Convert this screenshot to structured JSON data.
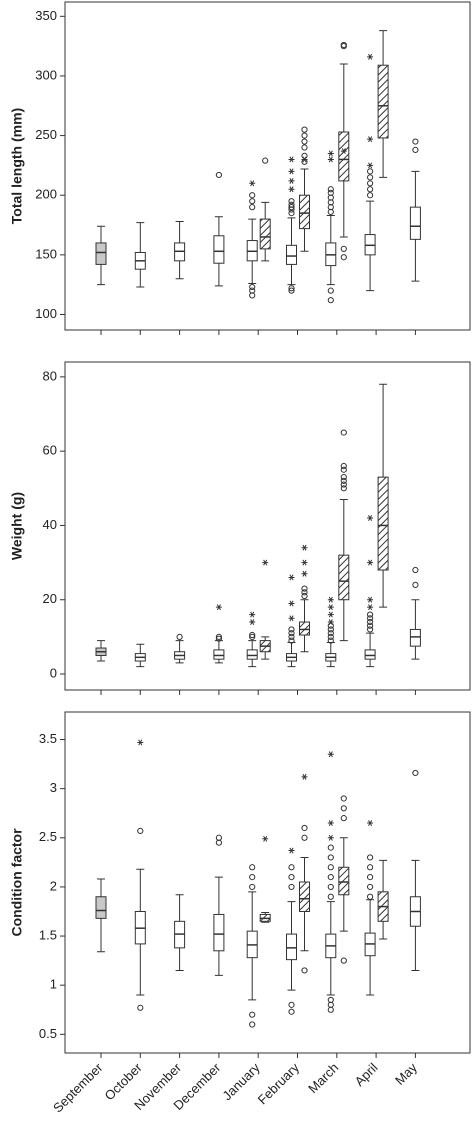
{
  "chart_data": [
    {
      "type": "box",
      "y_label": "Total length (mm)",
      "ylim": [
        87,
        362
      ],
      "yticks": [
        100,
        150,
        200,
        250,
        300,
        350
      ],
      "series": [
        {
          "colors": [
            "#c8c8c8",
            "#ffffff",
            "#ffffff",
            "#ffffff",
            "#ffffff",
            "#ffffff",
            "#ffffff",
            "#ffffff",
            "#ffffff"
          ],
          "boxes": [
            {
              "whislo": 125,
              "q1": 142,
              "med": 152,
              "q3": 160,
              "whishi": 174
            },
            {
              "whislo": 123,
              "q1": 138,
              "med": 145,
              "q3": 152,
              "whishi": 177
            },
            {
              "whislo": 130,
              "q1": 145,
              "med": 153,
              "q3": 160,
              "whishi": 178
            },
            {
              "whislo": 124,
              "q1": 143,
              "med": 153,
              "q3": 166,
              "whishi": 182,
              "outliers": [
                217
              ]
            },
            {
              "whislo": 126,
              "q1": 145,
              "med": 153,
              "q3": 162,
              "whishi": 180,
              "outliers": [
                190,
                195,
                200,
                123,
                120,
                116
              ],
              "extremes": [
                210
              ]
            },
            {
              "whislo": 125,
              "q1": 142,
              "med": 149,
              "q3": 158,
              "whishi": 181,
              "outliers": [
                185,
                188,
                190,
                192,
                195,
                122,
                120
              ],
              "extremes": [
                205,
                212,
                220,
                230
              ]
            },
            {
              "whislo": 125,
              "q1": 141,
              "med": 150,
              "q3": 160,
              "whishi": 183,
              "outliers": [
                186,
                190,
                194,
                198,
                202,
                205,
                120,
                112
              ],
              "extremes": [
                230,
                235
              ]
            },
            {
              "whislo": 120,
              "q1": 150,
              "med": 158,
              "q3": 167,
              "whishi": 195,
              "outliers": [
                200,
                205,
                210,
                215,
                220
              ],
              "extremes": [
                225,
                247,
                316
              ]
            },
            {
              "whislo": 128,
              "q1": 163,
              "med": 174,
              "q3": 190,
              "whishi": 220,
              "outliers": [
                238,
                245
              ]
            }
          ]
        },
        {
          "color": "#ffffff",
          "pattern": "hatch",
          "boxes": [
            null,
            null,
            null,
            null,
            {
              "whislo": 145,
              "q1": 155,
              "med": 165,
              "q3": 180,
              "whishi": 194,
              "outliers": [
                229
              ]
            },
            {
              "whislo": 153,
              "q1": 172,
              "med": 185,
              "q3": 200,
              "whishi": 222,
              "outliers": [
                228,
                233,
                240,
                245,
                250,
                255
              ],
              "extremes": [
                230
              ]
            },
            {
              "whislo": 165,
              "q1": 212,
              "med": 230,
              "q3": 253,
              "whishi": 310,
              "outliers": [
                325,
                326,
                155,
                148
              ],
              "extremes": [
                237
              ]
            },
            {
              "whislo": 215,
              "q1": 248,
              "med": 275,
              "q3": 309,
              "whishi": 338
            },
            null
          ]
        }
      ]
    },
    {
      "type": "box",
      "y_label": "Weight (g)",
      "ylim": [
        -4.3,
        84
      ],
      "yticks": [
        0,
        20,
        40,
        60,
        80
      ],
      "series": [
        {
          "colors": [
            "#c8c8c8",
            "#ffffff",
            "#ffffff",
            "#ffffff",
            "#ffffff",
            "#ffffff",
            "#ffffff",
            "#ffffff",
            "#ffffff"
          ],
          "boxes": [
            {
              "whislo": 3.5,
              "q1": 5,
              "med": 6,
              "q3": 7,
              "whishi": 9
            },
            {
              "whislo": 2,
              "q1": 3.5,
              "med": 4.5,
              "q3": 5.5,
              "whishi": 8
            },
            {
              "whislo": 3,
              "q1": 4,
              "med": 5,
              "q3": 6,
              "whishi": 9,
              "outliers": [
                10
              ]
            },
            {
              "whislo": 3,
              "q1": 4,
              "med": 5,
              "q3": 6.5,
              "whishi": 9,
              "outliers": [
                10,
                9.5
              ],
              "extremes": [
                18
              ]
            },
            {
              "whislo": 2,
              "q1": 4,
              "med": 5,
              "q3": 6.5,
              "whishi": 9,
              "outliers": [
                10,
                10.5
              ],
              "extremes": [
                14,
                16
              ]
            },
            {
              "whislo": 2,
              "q1": 3.5,
              "med": 4.5,
              "q3": 5.5,
              "whishi": 8.5,
              "outliers": [
                9,
                10,
                11,
                12
              ],
              "extremes": [
                15,
                19,
                26
              ]
            },
            {
              "whislo": 2,
              "q1": 3.5,
              "med": 4.5,
              "q3": 5.5,
              "whishi": 8.5,
              "outliers": [
                9,
                10,
                11,
                12,
                13
              ],
              "extremes": [
                14,
                16,
                18,
                20
              ]
            },
            {
              "whislo": 2,
              "q1": 4,
              "med": 5,
              "q3": 6.5,
              "whishi": 11,
              "outliers": [
                12,
                13,
                14,
                15,
                16
              ],
              "extremes": [
                18,
                20,
                30,
                42
              ]
            },
            {
              "whislo": 4,
              "q1": 7.5,
              "med": 10,
              "q3": 12,
              "whishi": 20,
              "outliers": [
                24,
                28
              ]
            }
          ]
        },
        {
          "color": "#ffffff",
          "pattern": "hatch",
          "boxes": [
            null,
            null,
            null,
            null,
            {
              "whislo": 4,
              "q1": 6,
              "med": 7.5,
              "q3": 9,
              "whishi": 10,
              "extremes": [
                30
              ]
            },
            {
              "whislo": 6,
              "q1": 10.5,
              "med": 12,
              "q3": 14,
              "whishi": 20,
              "outliers": [
                21,
                22,
                23
              ],
              "extremes": [
                27,
                30,
                34
              ]
            },
            {
              "whislo": 9,
              "q1": 20,
              "med": 25,
              "q3": 32,
              "whishi": 47,
              "outliers": [
                50,
                51,
                52,
                53,
                55,
                56,
                65
              ]
            },
            {
              "whislo": 18,
              "q1": 28,
              "med": 40,
              "q3": 53,
              "whishi": 78
            },
            null
          ]
        }
      ]
    },
    {
      "type": "box",
      "y_label": "Condition factor",
      "ylim": [
        0.31,
        3.78
      ],
      "yticks": [
        0.5,
        1.0,
        1.5,
        2.0,
        2.5,
        3.0,
        3.5
      ],
      "categories": [
        "September",
        "October",
        "November",
        "December",
        "January",
        "February",
        "March",
        "April",
        "May"
      ],
      "series": [
        {
          "colors": [
            "#c8c8c8",
            "#ffffff",
            "#ffffff",
            "#ffffff",
            "#ffffff",
            "#ffffff",
            "#ffffff",
            "#ffffff",
            "#ffffff"
          ],
          "boxes": [
            {
              "whislo": 1.34,
              "q1": 1.68,
              "med": 1.76,
              "q3": 1.9,
              "whishi": 2.08
            },
            {
              "whislo": 0.9,
              "q1": 1.42,
              "med": 1.58,
              "q3": 1.75,
              "whishi": 2.18,
              "outliers": [
                2.57,
                0.77
              ],
              "extremes": [
                3.47
              ]
            },
            {
              "whislo": 1.15,
              "q1": 1.38,
              "med": 1.52,
              "q3": 1.65,
              "whishi": 1.92
            },
            {
              "whislo": 1.1,
              "q1": 1.35,
              "med": 1.52,
              "q3": 1.72,
              "whishi": 2.1,
              "outliers": [
                2.45,
                2.5
              ]
            },
            {
              "whislo": 0.85,
              "q1": 1.28,
              "med": 1.41,
              "q3": 1.55,
              "whishi": 1.95,
              "outliers": [
                2.0,
                2.1,
                2.2,
                0.7,
                0.6
              ]
            },
            {
              "whislo": 0.95,
              "q1": 1.26,
              "med": 1.38,
              "q3": 1.52,
              "whishi": 1.85,
              "outliers": [
                2.0,
                2.1,
                2.2,
                0.8,
                0.73
              ],
              "extremes": [
                2.37
              ]
            },
            {
              "whislo": 0.9,
              "q1": 1.28,
              "med": 1.4,
              "q3": 1.52,
              "whishi": 1.85,
              "outliers": [
                1.9,
                2.0,
                2.1,
                2.2,
                2.3,
                2.4,
                0.75,
                0.8,
                0.85
              ],
              "extremes": [
                2.5,
                2.65,
                3.35
              ]
            },
            {
              "whislo": 0.9,
              "q1": 1.3,
              "med": 1.42,
              "q3": 1.53,
              "whishi": 1.87,
              "outliers": [
                1.9,
                2.0,
                2.1,
                2.2,
                2.3
              ],
              "extremes": [
                2.65
              ]
            },
            {
              "whislo": 1.15,
              "q1": 1.6,
              "med": 1.75,
              "q3": 1.9,
              "whishi": 2.27,
              "outliers": [
                3.16
              ]
            }
          ]
        },
        {
          "color": "#ffffff",
          "pattern": "hatch",
          "boxes": [
            null,
            null,
            null,
            null,
            {
              "whislo": 1.64,
              "q1": 1.65,
              "med": 1.68,
              "q3": 1.72,
              "whishi": 1.74,
              "extremes": [
                2.49
              ]
            },
            {
              "whislo": 1.35,
              "q1": 1.75,
              "med": 1.88,
              "q3": 2.05,
              "whishi": 2.3,
              "outliers": [
                2.5,
                2.6,
                1.15
              ],
              "extremes": [
                3.12
              ]
            },
            {
              "whislo": 1.55,
              "q1": 1.92,
              "med": 2.05,
              "q3": 2.2,
              "whishi": 2.5,
              "outliers": [
                2.7,
                2.8,
                2.9,
                1.25
              ]
            },
            {
              "whislo": 1.47,
              "q1": 1.65,
              "med": 1.8,
              "q3": 1.95,
              "whishi": 2.27
            },
            null
          ]
        }
      ]
    }
  ]
}
